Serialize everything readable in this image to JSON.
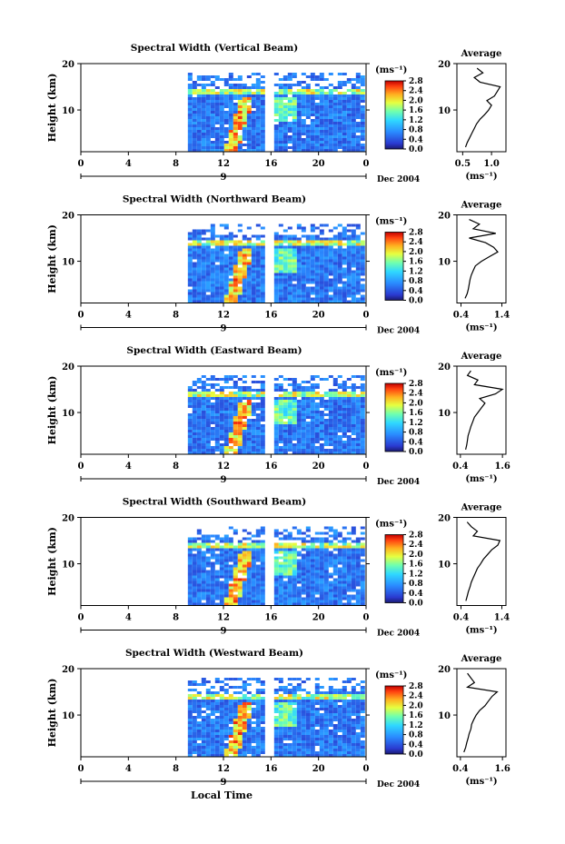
{
  "chart_data": {
    "type": "heatmap",
    "date_label": "Dec 2004",
    "x_axis_label": "Local Time",
    "unit_label": "(ms⁻¹)",
    "average_title": "Average",
    "y_axis_label": "Height (km)",
    "xlim": [
      0,
      24
    ],
    "ylim": [
      1,
      20
    ],
    "x_ticks": [
      "0",
      "4",
      "8",
      "12",
      "16",
      "20",
      "0"
    ],
    "day_marker": "9",
    "y_ticks": [
      "10",
      "20"
    ],
    "colorbar_ticks": [
      "0.0",
      "0.4",
      "0.8",
      "1.2",
      "1.6",
      "2.0",
      "2.4",
      "2.8"
    ],
    "data_start_hour": 9,
    "data_gap_hour": 15.7,
    "panels": [
      {
        "title": "Spectral Width (Vertical Beam)",
        "avg_ticks": [
          "0.5",
          "1.0"
        ],
        "avg_xlim": [
          0.4,
          1.25
        ],
        "avg_profile": {
          "height_km": [
            2,
            3,
            4,
            5,
            6,
            7,
            8,
            9,
            10,
            11,
            12,
            13,
            14,
            15,
            16,
            17,
            18,
            19
          ],
          "width": [
            0.55,
            0.58,
            0.62,
            0.66,
            0.7,
            0.74,
            0.8,
            0.88,
            0.95,
            1.0,
            0.92,
            1.05,
            1.1,
            1.15,
            0.8,
            0.7,
            0.85,
            0.75
          ]
        }
      },
      {
        "title": "Spectral Width (Northward Beam)",
        "avg_ticks": [
          "0.4",
          "1.4"
        ],
        "avg_xlim": [
          0.3,
          1.5
        ],
        "avg_profile": {
          "height_km": [
            2,
            3,
            4,
            5,
            6,
            7,
            8,
            9,
            10,
            11,
            12,
            13,
            14,
            15,
            16,
            17,
            18,
            19
          ],
          "width": [
            0.5,
            0.55,
            0.58,
            0.6,
            0.62,
            0.65,
            0.7,
            0.75,
            0.9,
            1.1,
            1.3,
            1.2,
            1.0,
            0.6,
            1.25,
            0.7,
            0.85,
            0.6
          ]
        }
      },
      {
        "title": "Spectral Width (Eastward Beam)",
        "avg_ticks": [
          "0.4",
          "1.6"
        ],
        "avg_xlim": [
          0.3,
          1.7
        ],
        "avg_profile": {
          "height_km": [
            2,
            3,
            4,
            5,
            6,
            7,
            8,
            9,
            10,
            11,
            12,
            13,
            14,
            15,
            16,
            17,
            18,
            19
          ],
          "width": [
            0.55,
            0.58,
            0.6,
            0.62,
            0.66,
            0.7,
            0.75,
            0.8,
            0.9,
            1.0,
            1.1,
            0.95,
            1.4,
            1.6,
            0.8,
            0.9,
            0.6,
            0.7
          ]
        }
      },
      {
        "title": "Spectral Width (Southward Beam)",
        "avg_ticks": [
          "0.4",
          "1.4"
        ],
        "avg_xlim": [
          0.3,
          1.5
        ],
        "avg_profile": {
          "height_km": [
            2,
            3,
            4,
            5,
            6,
            7,
            8,
            9,
            10,
            11,
            12,
            13,
            14,
            15,
            16,
            17,
            18,
            19
          ],
          "width": [
            0.52,
            0.55,
            0.58,
            0.62,
            0.65,
            0.7,
            0.75,
            0.8,
            0.88,
            0.95,
            1.05,
            1.15,
            1.3,
            1.35,
            0.7,
            0.8,
            0.65,
            0.55
          ]
        }
      },
      {
        "title": "Spectral Width (Westward Beam)",
        "avg_ticks": [
          "0.4",
          "1.6"
        ],
        "avg_xlim": [
          0.3,
          1.7
        ],
        "avg_profile": {
          "height_km": [
            2,
            3,
            4,
            5,
            6,
            7,
            8,
            9,
            10,
            11,
            12,
            13,
            14,
            15,
            16,
            17,
            18,
            19
          ],
          "width": [
            0.5,
            0.55,
            0.58,
            0.62,
            0.65,
            0.7,
            0.72,
            0.78,
            0.85,
            0.95,
            1.1,
            1.2,
            1.3,
            1.45,
            0.6,
            0.8,
            0.7,
            0.6
          ]
        }
      }
    ]
  }
}
